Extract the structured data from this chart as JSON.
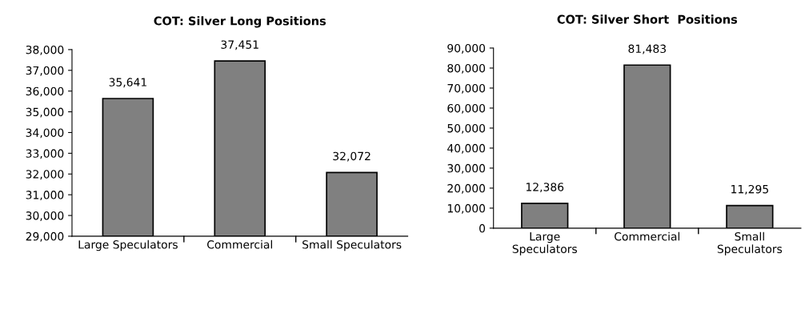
{
  "chart_data": [
    {
      "type": "bar",
      "title": "COT: Silver Long Positions",
      "categories": [
        "Large Speculators",
        "Commercial",
        "Small Speculators"
      ],
      "values": [
        35641,
        37451,
        32072
      ],
      "value_labels": [
        "35,641",
        "37,451",
        "32,072"
      ],
      "color": "#808080",
      "grid": false,
      "ylim": [
        29000,
        38000
      ],
      "yticks": [
        {
          "value": 29000,
          "label": "29,000"
        },
        {
          "value": 30000,
          "label": "30,000"
        },
        {
          "value": 31000,
          "label": "31,000"
        },
        {
          "value": 32000,
          "label": "32,000"
        },
        {
          "value": 33000,
          "label": "33,000"
        },
        {
          "value": 34000,
          "label": "34,000"
        },
        {
          "value": 35000,
          "label": "35,000"
        },
        {
          "value": 36000,
          "label": "36,000"
        },
        {
          "value": 37000,
          "label": "37,000"
        },
        {
          "value": 38000,
          "label": "38,000"
        }
      ]
    },
    {
      "type": "bar",
      "title": "COT: Silver Short  Positions",
      "categories": [
        "Large\nSpeculators",
        "Commercial",
        "Small\nSpeculators"
      ],
      "values": [
        12386,
        81483,
        11295
      ],
      "value_labels": [
        "12,386",
        "81,483",
        "11,295"
      ],
      "color": "#808080",
      "grid": false,
      "ylim": [
        0,
        90000
      ],
      "yticks": [
        0,
        {
          "value": 10000,
          "label": "10,000"
        },
        {
          "value": 20000,
          "label": "20,000"
        },
        {
          "value": 30000,
          "label": "30,000"
        },
        {
          "value": 40000,
          "label": "40,000"
        },
        {
          "value": 50000,
          "label": "50,000"
        },
        {
          "value": 60000,
          "label": "60,000"
        },
        {
          "value": 70000,
          "label": "70,000"
        },
        {
          "value": 80000,
          "label": "80,000"
        },
        {
          "value": 90000,
          "label": "90,000"
        }
      ]
    }
  ]
}
